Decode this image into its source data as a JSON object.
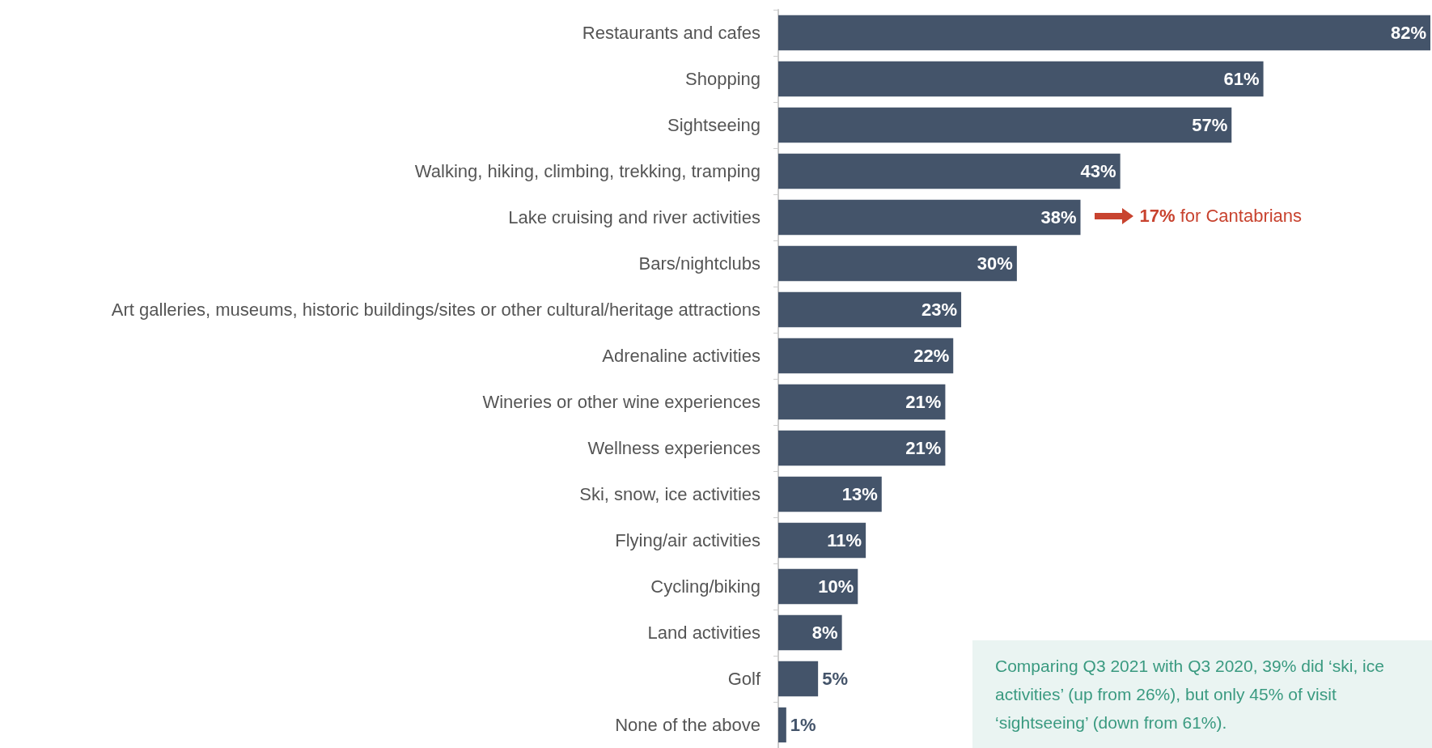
{
  "chart_data": {
    "type": "bar",
    "orientation": "horizontal",
    "categories": [
      "Restaurants and cafes",
      "Shopping",
      "Sightseeing",
      "Walking, hiking, climbing, trekking, tramping",
      "Lake cruising and river activities",
      "Bars/nightclubs",
      "Art galleries, museums, historic buildings/sites or other cultural/heritage attractions",
      "Adrenaline activities",
      "Wineries or other wine experiences",
      "Wellness experiences",
      "Ski, snow, ice activities",
      "Flying/air activities",
      "Cycling/biking",
      "Land activities",
      "Golf",
      "None of the above"
    ],
    "values": [
      82,
      61,
      57,
      43,
      38,
      30,
      23,
      22,
      21,
      21,
      13,
      11,
      10,
      8,
      5,
      1
    ],
    "value_labels": [
      "82%",
      "61%",
      "57%",
      "43%",
      "38%",
      "30%",
      "23%",
      "22%",
      "21%",
      "21%",
      "13%",
      "11%",
      "10%",
      "8%",
      "5%",
      "1%"
    ],
    "color": "#44546a",
    "annotations": [
      "17% for Cantabrians",
      "Comparing Q3 2021 with Q3 2020, 39% did ‘ski, ice activities’ (up from 26%), but only 45% of visit ‘sightseeing’ (down from 61%)."
    ]
  }
}
